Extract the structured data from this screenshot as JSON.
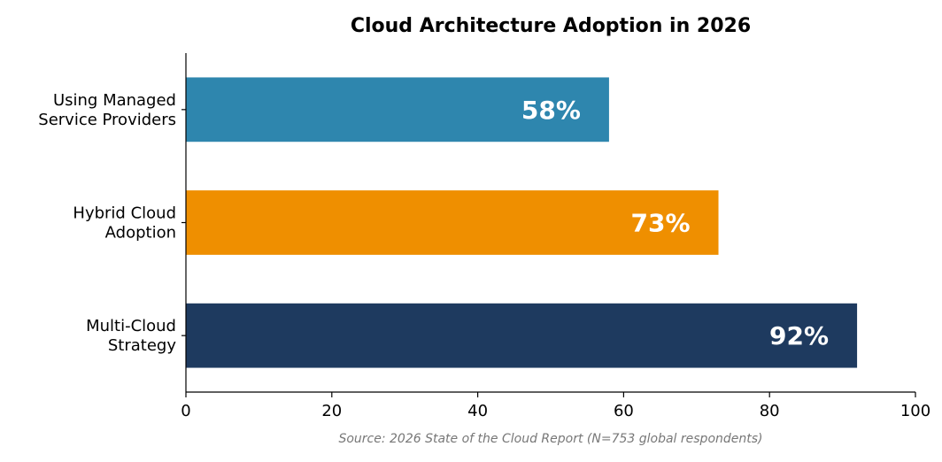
{
  "chart_data": {
    "type": "bar",
    "orientation": "horizontal",
    "title": "Cloud Architecture Adoption in 2026",
    "xlabel": "",
    "ylabel": "",
    "xlim": [
      0,
      100
    ],
    "x_ticks": [
      0,
      20,
      40,
      60,
      80,
      100
    ],
    "grid": false,
    "categories": [
      {
        "lines": [
          "Using Managed",
          "Service Providers"
        ]
      },
      {
        "lines": [
          "Hybrid Cloud",
          "Adoption"
        ]
      },
      {
        "lines": [
          "Multi-Cloud",
          "Strategy"
        ]
      }
    ],
    "values": [
      58,
      73,
      92
    ],
    "data_labels": [
      "58%",
      "73%",
      "92%"
    ],
    "colors": [
      "#2e86ae",
      "#ef8f00",
      "#1e3a5f"
    ],
    "source_note": "Source: 2026 State of the Cloud Report (N=753 global respondents)"
  }
}
